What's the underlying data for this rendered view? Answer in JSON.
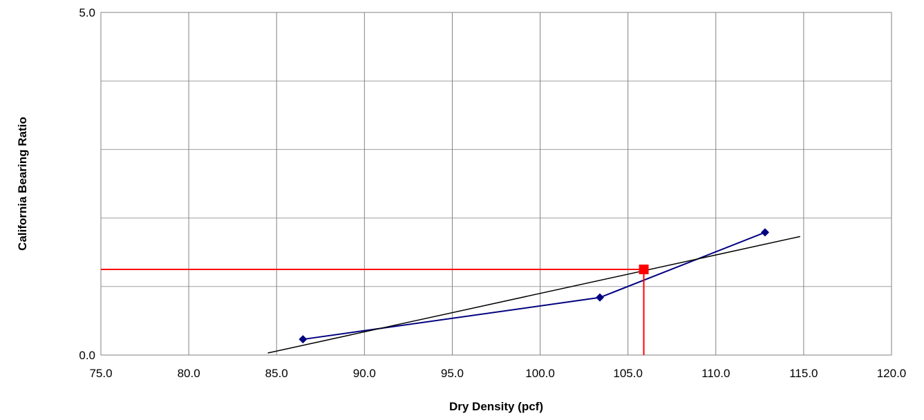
{
  "chart_data": {
    "type": "scatter",
    "title": "",
    "xlabel": "Dry Density (pcf)",
    "ylabel": "California Bearing Ratio",
    "xlim": [
      75.0,
      120.0
    ],
    "ylim": [
      0.0,
      5.0
    ],
    "x_ticks": [
      "75.0",
      "80.0",
      "85.0",
      "90.0",
      "95.0",
      "100.0",
      "105.0",
      "110.0",
      "115.0",
      "120.0"
    ],
    "y_ticks": [
      "0.0",
      "5.0"
    ],
    "x_tick_values": [
      75,
      80,
      85,
      90,
      95,
      100,
      105,
      110,
      115,
      120
    ],
    "y_tick_values": [
      0,
      5
    ],
    "grid": {
      "vertical": true,
      "horizontal": true,
      "horizontal_values": [
        0,
        1,
        2,
        3,
        4,
        5
      ]
    },
    "legend": "none",
    "series": [
      {
        "type": "line-markers",
        "color": "#000080",
        "marker": "diamond",
        "points": [
          [
            86.5,
            0.23
          ],
          [
            103.4,
            0.84
          ],
          [
            112.8,
            1.79
          ]
        ]
      },
      {
        "type": "trendline",
        "color": "#000000",
        "points": [
          [
            84.5,
            0.03
          ],
          [
            114.8,
            1.73
          ]
        ]
      },
      {
        "type": "reference",
        "color": "#ff0000",
        "marker": "square",
        "point": [
          105.9,
          1.25
        ]
      }
    ]
  }
}
